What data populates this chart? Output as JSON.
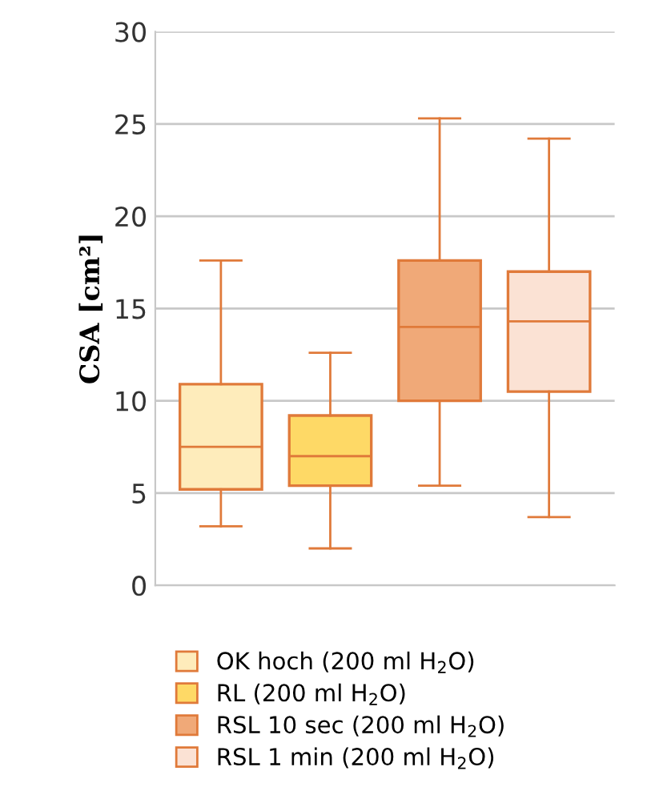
{
  "chart_data": {
    "type": "box",
    "ylabel": "CSA [cm²]",
    "categories": [
      null,
      null,
      null,
      null
    ],
    "ylim": [
      0,
      30
    ],
    "yticks": [
      0,
      5,
      10,
      15,
      20,
      25,
      30
    ],
    "grid": "y",
    "legend": "bottom",
    "series": [
      {
        "name": "OK hoch (200 ml H$_{2}$O)",
        "color": "#feecbb",
        "boxes": [
          {
            "low": 3.2,
            "q1": 5.2,
            "median": 7.5,
            "q3": 10.9,
            "high": 17.6
          },
          null,
          null,
          null
        ]
      },
      {
        "name": "RL (200 ml H$_{2}$O)",
        "color": "#fed966",
        "boxes": [
          null,
          {
            "low": 2.0,
            "q1": 5.4,
            "median": 7.0,
            "q3": 9.2,
            "high": 12.6
          },
          null,
          null
        ]
      },
      {
        "name": "RSL 10 sec (200 ml H$_{2}$O)",
        "color": "#f0a978",
        "boxes": [
          null,
          null,
          {
            "low": 5.4,
            "q1": 10.0,
            "median": 14.0,
            "q3": 17.6,
            "high": 25.3
          },
          null
        ]
      },
      {
        "name": "RSL 1 min (200 ml H$_{2}$O)",
        "color": "#fbe2d4",
        "boxes": [
          null,
          null,
          null,
          {
            "low": 3.7,
            "q1": 10.5,
            "median": 14.3,
            "q3": 17.0,
            "high": 24.2
          }
        ]
      }
    ]
  }
}
